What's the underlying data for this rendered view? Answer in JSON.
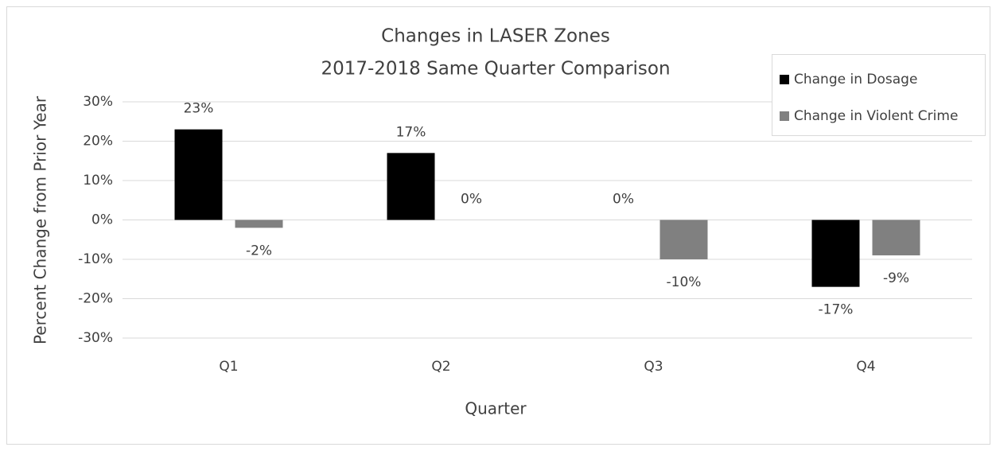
{
  "chart_data": {
    "type": "bar",
    "title": "Changes in LASER Zones",
    "subtitle": "2017-2018 Same Quarter Comparison",
    "x_label": "Quarter",
    "y_label": "Percent Change from Prior Year",
    "categories": [
      "Q1",
      "Q2",
      "Q3",
      "Q4"
    ],
    "series": [
      {
        "name": "Change in Dosage",
        "color": "#000000",
        "values": [
          23,
          17,
          0,
          -17
        ],
        "value_labels": [
          "23%",
          "17%",
          "0%",
          "-17%"
        ]
      },
      {
        "name": "Change in Violent Crime",
        "color": "#808080",
        "values": [
          -2,
          0,
          -10,
          -9
        ],
        "value_labels": [
          "-2%",
          "0%",
          "-10%",
          "-9%"
        ]
      }
    ],
    "ylim": [
      -30,
      30
    ],
    "yticks": [
      {
        "value": -30,
        "label": "-30%"
      },
      {
        "value": -20,
        "label": "-20%"
      },
      {
        "value": -10,
        "label": "-10%"
      },
      {
        "value": 0,
        "label": "0%"
      },
      {
        "value": 10,
        "label": "10%"
      },
      {
        "value": 20,
        "label": "20%"
      },
      {
        "value": 30,
        "label": "30%"
      }
    ],
    "grid": true,
    "legend": "top-right"
  }
}
